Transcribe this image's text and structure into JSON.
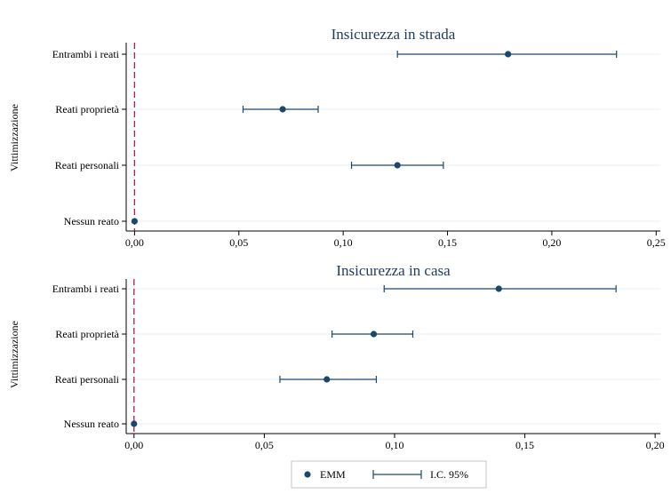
{
  "colors": {
    "marker": "#1a476f",
    "ci_line": "#1a476f",
    "reference_line": "#b0185a",
    "grid": "#e7eef4",
    "axis": "#000000"
  },
  "legend": {
    "items": [
      {
        "label": "EMM",
        "symbol": "dot"
      },
      {
        "label": "I.C. 95%",
        "symbol": "capped-line"
      }
    ]
  },
  "chart_data": [
    {
      "type": "scatter",
      "subtype": "coefficient-plot",
      "title": "Insicurezza in strada",
      "ylabel": "Vittimizzazione",
      "xlabel": "",
      "categories": [
        "Entrambi i reati",
        "Reati proprietà",
        "Reati personali",
        "Nessun reato"
      ],
      "estimates": [
        0.179,
        0.071,
        0.126,
        0.0
      ],
      "ci_low": [
        0.126,
        0.052,
        0.104,
        0.0
      ],
      "ci_high": [
        0.231,
        0.088,
        0.148,
        0.0
      ],
      "xlim": [
        -0.004,
        0.252
      ],
      "xticks": [
        0.0,
        0.05,
        0.1,
        0.15,
        0.2,
        0.25
      ],
      "xtick_labels": [
        "0,00",
        "0,05",
        "0,10",
        "0,15",
        "0,20",
        "0,25"
      ],
      "reference_x": 0.0,
      "grid": true
    },
    {
      "type": "scatter",
      "subtype": "coefficient-plot",
      "title": "Insicurezza in casa",
      "ylabel": "Vittimizzazione",
      "xlabel": "",
      "categories": [
        "Entrambi i reati",
        "Reati proprietà",
        "Reati personali",
        "Nessun reato"
      ],
      "estimates": [
        0.14,
        0.092,
        0.074,
        0.0
      ],
      "ci_low": [
        0.096,
        0.076,
        0.056,
        0.0
      ],
      "ci_high": [
        0.185,
        0.107,
        0.093,
        0.0
      ],
      "xlim": [
        -0.003,
        0.202
      ],
      "xticks": [
        0.0,
        0.05,
        0.1,
        0.15,
        0.2
      ],
      "xtick_labels": [
        "0,00",
        "0,05",
        "0,10",
        "0,15",
        "0,20"
      ],
      "reference_x": 0.0,
      "grid": true
    }
  ]
}
